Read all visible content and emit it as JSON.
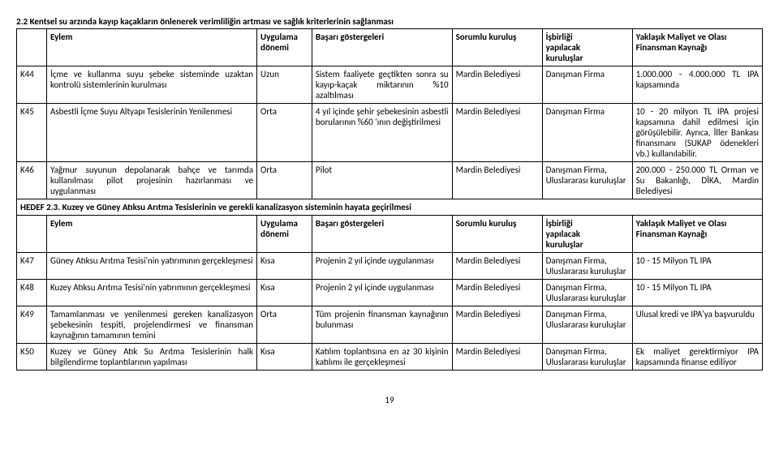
{
  "section_title": "2.2 Kentsel su arzında kayıp kaçakların önlenerek verimliliğin artması ve sağlık kriterlerinin sağlanması",
  "headers": {
    "eylem": "Eylem",
    "uygulama": "Uygulama dönemi",
    "basari": "Başarı göstergeleri",
    "sorumlu": "Sorumlu kuruluş",
    "isbirligi_line1": "İşbirliği",
    "isbirligi_line2": "yapılacak",
    "isbirligi_line3": "kuruluşlar",
    "maliyet": "Yaklaşık Maliyet ve Olası Finansman Kaynağı"
  },
  "rows1": [
    {
      "id": "K44",
      "eylem": "İçme ve kullanma suyu şebeke sisteminde uzaktan kontrolü sistemlerinin kurulması",
      "uyg": "Uzun",
      "bas": "Sistem faaliyete geçtikten sonra su kayıp-kaçak miktarının %10 azaltılması",
      "sor": "Mardin Belediyesi",
      "is": "Danışman Firma",
      "mal": "1.000.000 - 4.000.000 TL IPA kapsamında"
    },
    {
      "id": "K45",
      "eylem": "Asbestli İçme Suyu Altyapı Tesislerinin Yenilenmesi",
      "uyg": "Orta",
      "bas": "4 yıl içinde şehir şebekesinin asbestli borularının %60 'ının değiştirilmesi",
      "sor": "Mardin Belediyesi",
      "is": "Danışman Firma",
      "mal": "10 - 20 milyon TL IPA projesi kapsamına dahil edilmesi için görüşülebilir. Ayrıca, İller Bankası finansmanı (SUKAP ödenekleri vb.) kullanılabilir."
    },
    {
      "id": "K46",
      "eylem": "Yağmur suyunun depolanarak bahçe ve tarımda kullanılması pilot projesinin hazırlanması ve uygulanması",
      "uyg": "Orta",
      "bas": "Pilot",
      "sor": "Mardin Belediyesi",
      "is": "Danışman Firma, Uluslararası kuruluşlar",
      "mal": "200.000 - 250.000 TL Orman ve Su Bakanlığı, DİKA, Mardin Belediyesi"
    }
  ],
  "hedef_title": "HEDEF 2.3. Kuzey ve Güney Atıksu Arıtma Tesislerinin ve gerekli kanalizasyon sisteminin hayata geçirilmesi",
  "rows2": [
    {
      "id": "K47",
      "eylem": "Güney Atıksu Arıtma Tesisi'nin yatırımının gerçekleşmesi",
      "uyg": "Kısa",
      "bas": "Projenin 2 yıl içinde uygulanması",
      "sor": "Mardin Belediyesi",
      "is": "Danışman Firma, Uluslararası kuruluşlar",
      "mal": "10 - 15 Milyon TL IPA"
    },
    {
      "id": "K48",
      "eylem": "Kuzey Atıksu Arıtma Tesisi'nin yatırımının gerçekleşmesi",
      "uyg": "Kısa",
      "bas": "Projenin 2 yıl içinde uygulanması",
      "sor": "Mardin Belediyesi",
      "is": "Danışman Firma, Uluslararası kuruluşlar",
      "mal": "10 - 15 Milyon TL IPA"
    },
    {
      "id": "K49",
      "eylem": "Tamamlanması ve yenilenmesi gereken kanalizasyon şebekesinin tespiti, projelendirmesi ve finansman kaynağının tamamının temini",
      "uyg": "Orta",
      "bas": "Tüm projenin finansman kaynağının bulunması",
      "sor": "Mardin Belediyesi",
      "is": "Danışman Firma, Uluslararası kuruluşlar",
      "mal": "Ulusal kredi ve IPA'ya başvuruldu"
    },
    {
      "id": "K50",
      "eylem": "Kuzey ve Güney Atık Su Arıtma Tesislerinin halk bilgilendirme toplantılarının yapılması",
      "uyg": "Kısa",
      "bas": "Katılım toplantısına en az 30 kişinin katılımı ile gerçekleşmesi",
      "sor": "Mardin Belediyesi",
      "is": "Danışman Firma, Uluslararası kuruluşlar",
      "mal": "Ek maliyet gerektirmiyor IPA kapsamında finanse ediliyor"
    }
  ],
  "page_number": "19"
}
